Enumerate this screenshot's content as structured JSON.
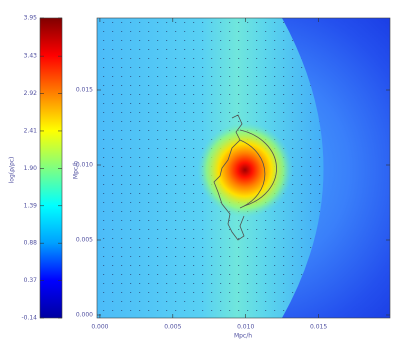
{
  "chart_data": {
    "type": "heatmap",
    "xlabel": "Mpc/h",
    "ylabel": "Mpc/h",
    "xlim": [
      -0.0002,
      0.0199
    ],
    "ylim": [
      -0.0002,
      0.0198
    ],
    "xticks": [
      {
        "value": 0,
        "label": "0.000"
      },
      {
        "value": 0.005,
        "label": "0.005"
      },
      {
        "value": 0.01,
        "label": "0.010"
      },
      {
        "value": 0.015,
        "label": "0.015"
      }
    ],
    "yticks": [
      {
        "value": 0,
        "label": "0.000"
      },
      {
        "value": 0.005,
        "label": "0.005"
      },
      {
        "value": 0.01,
        "label": "0.010"
      },
      {
        "value": 0.015,
        "label": "0.015"
      }
    ],
    "colorbar": {
      "label": "log(ρ/ρc)",
      "clim": [
        -0.14,
        3.95
      ],
      "colormap": [
        "#0000a0",
        "#0000ff",
        "#00a0ff",
        "#00ffff",
        "#80ff80",
        "#ffff00",
        "#ff8000",
        "#ff0000",
        "#800000"
      ],
      "ticks": [
        -0.14,
        0.37,
        0.88,
        1.39,
        {
          "value": 1.9,
          "label": "1.90"
        },
        2.41,
        2.92,
        3.43,
        3.95
      ]
    }
  }
}
